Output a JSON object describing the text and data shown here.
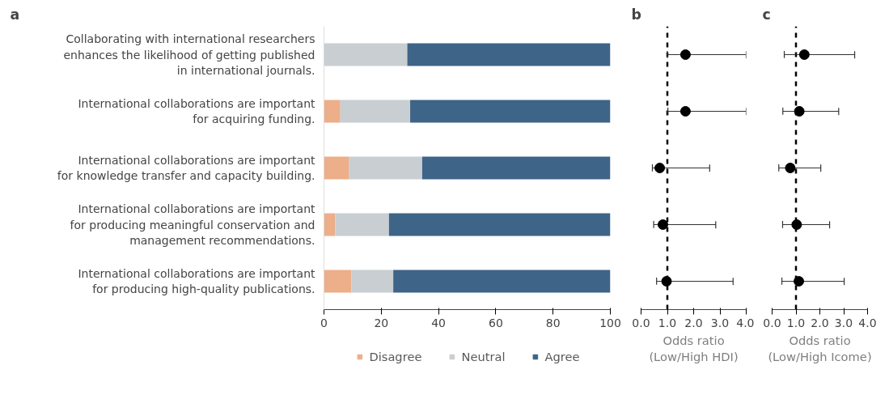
{
  "chart_data": [
    {
      "type": "bar",
      "title": "a",
      "orientation": "horizontal",
      "stacked": true,
      "categories": [
        "Collaborating with international researchers enhances the likelihood of getting published in international journals.",
        "International collaborations are important for acquiring funding.",
        "International collaborations are important for knowledge transfer and capacity building.",
        "International collaborations are important for producing meaningful conservation and management recommendations.",
        "International collaborations are important for producing high-quality publications."
      ],
      "series": [
        {
          "name": "Disagree",
          "color": "#edae8a",
          "values": [
            0,
            5.7,
            8.8,
            3.9,
            9.6
          ]
        },
        {
          "name": "Neutral",
          "color": "#c8ced1",
          "values": [
            29.1,
            24.4,
            25.5,
            18.8,
            14.6
          ]
        },
        {
          "name": "Agree",
          "color": "#3e6487",
          "values": [
            70.9,
            69.9,
            65.7,
            77.3,
            75.8
          ]
        }
      ],
      "xlim": [
        0,
        100
      ],
      "xticks": [
        0,
        20,
        40,
        60,
        80,
        100
      ],
      "legend": "bottom",
      "grid": false
    },
    {
      "type": "scatter",
      "title": "b",
      "orientation": "horizontal",
      "xlabel": "Odds ratio (Low/High HDI)",
      "categories": [
        null,
        null,
        null,
        null,
        null
      ],
      "series": [
        {
          "color": "#000000",
          "values": [
            1.69,
            1.69,
            0.71,
            0.83,
            0.97
          ],
          "errors": [
            [
              1.0,
              4.0
            ],
            [
              1.02,
              4.0
            ],
            [
              0.43,
              2.61
            ],
            [
              0.48,
              2.84
            ],
            [
              0.59,
              3.5
            ]
          ]
        }
      ],
      "xlim": [
        0,
        4
      ],
      "xticks": [
        {
          "value": 0,
          "label": "0.0"
        },
        {
          "value": 1,
          "label": "1.0"
        },
        {
          "value": 2,
          "label": "2.0"
        },
        {
          "value": 3,
          "label": "3.0"
        },
        {
          "value": 4,
          "label": "4.0"
        }
      ],
      "ref_lines": [
        {
          "axis": "x",
          "value": 1,
          "color": "#000000",
          "line_style": "dashed"
        }
      ],
      "marker": "circle",
      "tick_labels": "x",
      "grid": false
    },
    {
      "type": "scatter",
      "title": "c",
      "orientation": "horizontal",
      "xlabel": "Odds ratio (Low/High Icome)",
      "categories": [
        null,
        null,
        null,
        null,
        null
      ],
      "series": [
        {
          "color": "#000000",
          "values": [
            1.35,
            1.14,
            0.76,
            1.03,
            1.12
          ],
          "errors": [
            [
              0.51,
              3.46
            ],
            [
              0.45,
              2.79
            ],
            [
              0.28,
              2.04
            ],
            [
              0.44,
              2.41
            ],
            [
              0.41,
              3.02
            ]
          ]
        }
      ],
      "xlim": [
        0,
        4
      ],
      "xticks": [
        {
          "value": 0,
          "label": "0.0"
        },
        {
          "value": 1,
          "label": "1.0"
        },
        {
          "value": 2,
          "label": "2.0"
        },
        {
          "value": 3,
          "label": "3.0"
        },
        {
          "value": 4,
          "label": "4.0"
        }
      ],
      "ref_lines": [
        {
          "axis": "x",
          "value": 1,
          "color": "#000000",
          "line_style": "dashed"
        }
      ],
      "marker": "circle",
      "tick_labels": "x",
      "grid": false
    }
  ]
}
